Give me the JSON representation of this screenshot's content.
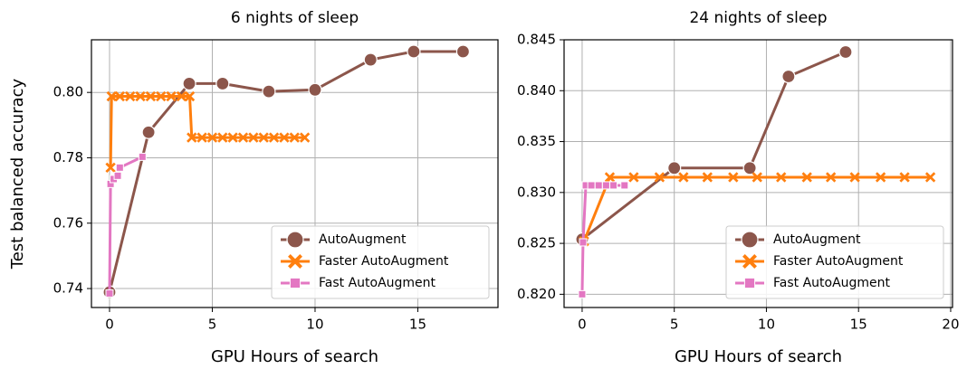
{
  "chart_data": [
    {
      "type": "line",
      "title": "6 nights of sleep",
      "xlabel": "GPU Hours of search",
      "ylabel": "Test balanced accuracy",
      "xlim": [
        -0.88,
        18.9
      ],
      "xticks": [
        0,
        5,
        10,
        15
      ],
      "ylim": [
        0.7342,
        0.8161
      ],
      "yticks": [
        0.74,
        0.76,
        0.78,
        {
          "value": 0.8,
          "label": "0.80"
        }
      ],
      "grid": true,
      "legend": "lower right",
      "series": [
        {
          "name": "AutoAugment",
          "color": "#8c564b",
          "marker": "circle",
          "x": [
            0,
            1.9,
            3.88,
            5.5,
            7.75,
            10,
            12.7,
            14.8,
            17.2
          ],
          "values": [
            0.7389,
            0.7878,
            0.8027,
            0.8027,
            0.8003,
            0.8008,
            0.81,
            0.8125,
            0.8125
          ]
        },
        {
          "name": "Faster AutoAugment",
          "color": "#ff7f0e",
          "marker": "x",
          "x": [
            0.05,
            0.1,
            0.5,
            1.0,
            1.5,
            2.0,
            2.5,
            3.0,
            3.5,
            3.9,
            4.0,
            4.5,
            5.0,
            5.5,
            6.0,
            6.5,
            7.0,
            7.5,
            8.0,
            8.5,
            9.0,
            9.5
          ],
          "values": [
            0.777,
            0.7988,
            0.7988,
            0.7988,
            0.7988,
            0.7988,
            0.7988,
            0.7988,
            0.7988,
            0.7988,
            0.7862,
            0.7862,
            0.7862,
            0.7862,
            0.7862,
            0.7862,
            0.7862,
            0.7862,
            0.7862,
            0.7862,
            0.7862,
            0.7862
          ]
        },
        {
          "name": "Fast AutoAugment",
          "color": "#e377c2",
          "marker": "square",
          "x": [
            0,
            0.05,
            0.2,
            0.4,
            0.5,
            1.6
          ],
          "values": [
            0.7385,
            0.772,
            0.7735,
            0.7745,
            0.777,
            0.7803
          ]
        }
      ]
    },
    {
      "type": "line",
      "title": "24 nights of sleep",
      "xlabel": "GPU Hours of search",
      "xlim": [
        -0.98,
        20.1
      ],
      "xticks": [
        0,
        5,
        10,
        15,
        20
      ],
      "ylim": [
        0.8187,
        0.845
      ],
      "yticks": [
        {
          "value": 0.82,
          "label": "0.820"
        },
        0.825,
        {
          "value": 0.83,
          "label": "0.830"
        },
        0.835,
        {
          "value": 0.84,
          "label": "0.840"
        },
        0.845
      ],
      "grid": true,
      "legend": "lower right",
      "series": [
        {
          "name": "AutoAugment",
          "color": "#8c564b",
          "marker": "circle",
          "x": [
            0,
            5,
            9.1,
            11.2,
            14.3
          ],
          "values": [
            0.8254,
            0.8324,
            0.8324,
            0.8414,
            0.8438
          ]
        },
        {
          "name": "Faster AutoAugment",
          "color": "#ff7f0e",
          "marker": "x",
          "x": [
            0.1,
            1.5,
            2.8,
            4.2,
            5.5,
            6.8,
            8.2,
            9.5,
            10.8,
            12.2,
            13.5,
            14.8,
            16.2,
            17.5,
            18.9
          ],
          "values": [
            0.8252,
            0.8315,
            0.8315,
            0.8315,
            0.8315,
            0.8315,
            0.8315,
            0.8315,
            0.8315,
            0.8315,
            0.8315,
            0.8315,
            0.8315,
            0.8315,
            0.8315
          ]
        },
        {
          "name": "Fast AutoAugment",
          "color": "#e377c2",
          "marker": "square",
          "x": [
            0,
            0.05,
            0.2,
            0.5,
            0.9,
            1.3,
            1.7,
            2.3
          ],
          "values": [
            0.82,
            0.8251,
            0.8307,
            0.8307,
            0.8307,
            0.8307,
            0.8307,
            0.8307
          ]
        }
      ]
    }
  ]
}
